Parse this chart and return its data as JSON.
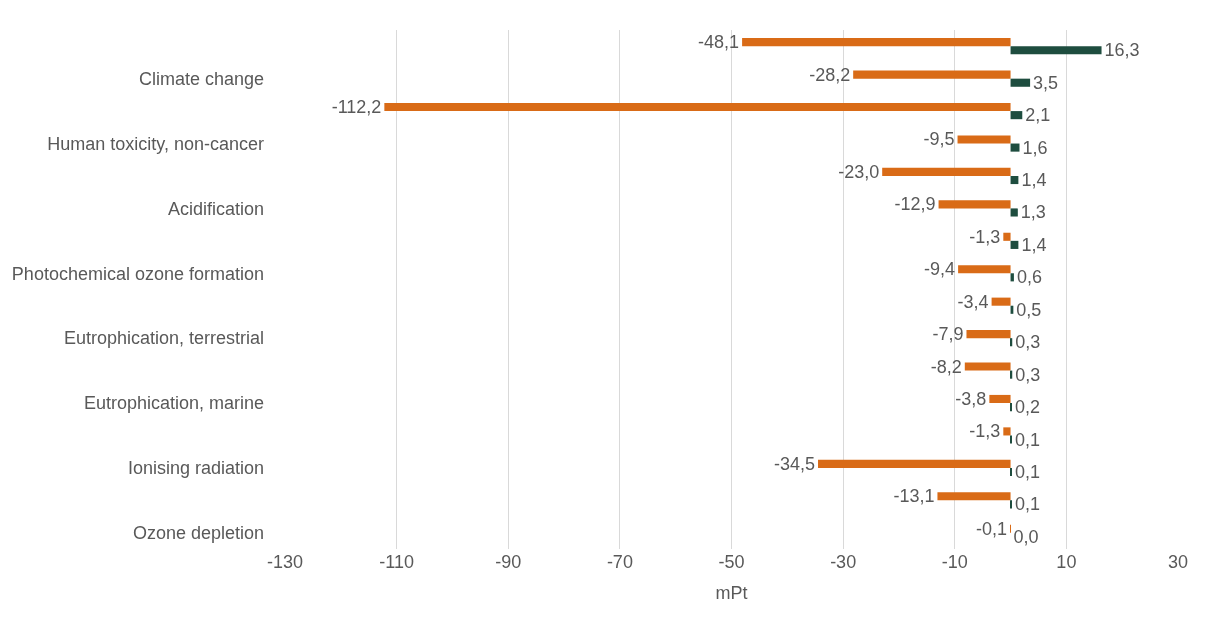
{
  "chart_data": {
    "type": "bar",
    "orientation": "horizontal",
    "xlabel": "mPt",
    "categories": [
      null,
      "Climate change",
      null,
      "Human toxicity, non-cancer",
      null,
      "Acidification",
      null,
      "Photochemical ozone formation",
      null,
      "Eutrophication, terrestrial",
      null,
      "Eutrophication, marine",
      null,
      "Ionising radiation",
      null,
      "Ozone depletion"
    ],
    "series": [
      {
        "color": "#d96b17",
        "values": [
          -48.1,
          -28.2,
          -112.2,
          -9.5,
          -23.0,
          -12.9,
          -1.3,
          -9.4,
          -3.4,
          -7.9,
          -8.2,
          -3.8,
          -1.3,
          -34.5,
          -13.1,
          -0.1
        ],
        "value_labels": [
          "-48,1",
          "-28,2",
          "-112,2",
          "-9,5",
          "-23,0",
          "-12,9",
          "-1,3",
          "-9,4",
          "-3,4",
          "-7,9",
          "-8,2",
          "-3,8",
          "-1,3",
          "-34,5",
          "-13,1",
          "-0,1"
        ]
      },
      {
        "color": "#1e4d3f",
        "values": [
          16.3,
          3.5,
          2.1,
          1.6,
          1.4,
          1.3,
          1.4,
          0.6,
          0.5,
          0.3,
          0.3,
          0.2,
          0.1,
          0.1,
          0.1,
          0.0
        ],
        "value_labels": [
          "16,3",
          "3,5",
          "2,1",
          "1,6",
          "1,4",
          "1,3",
          "1,4",
          "0,6",
          "0,5",
          "0,3",
          "0,3",
          "0,2",
          "0,1",
          "0,1",
          "0,1",
          "0,0"
        ]
      }
    ],
    "xlim": [
      -130,
      30
    ],
    "xticks": [
      -130,
      -110,
      -90,
      -70,
      -50,
      -30,
      -10,
      10,
      30
    ],
    "grid": "x"
  }
}
